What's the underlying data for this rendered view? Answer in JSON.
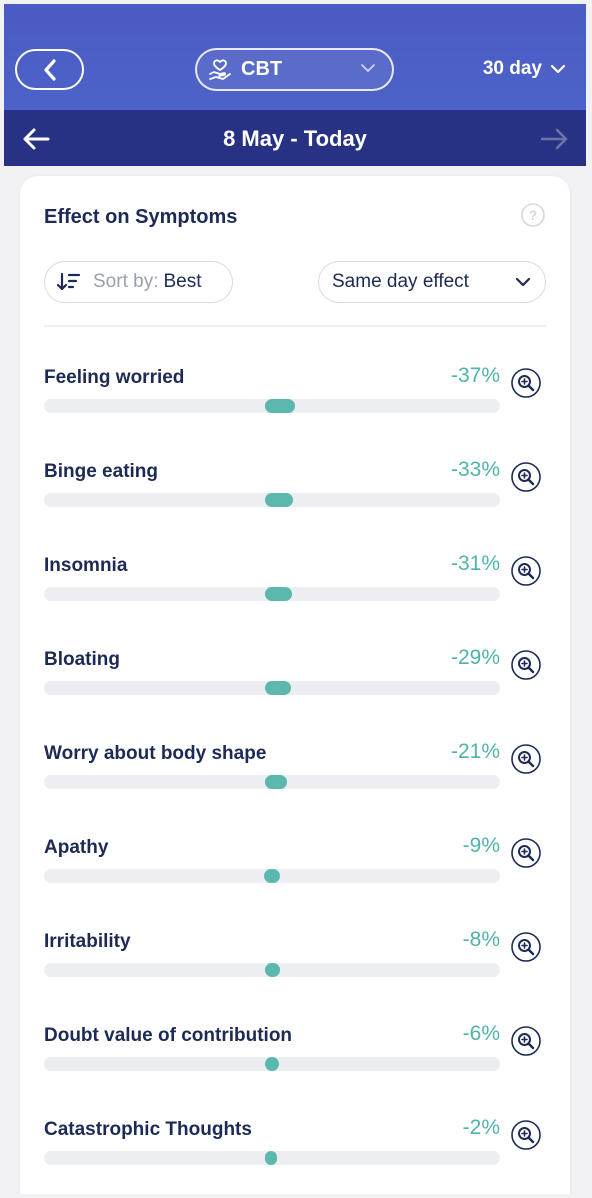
{
  "header": {
    "back_icon": "chevron-left-icon",
    "treatment": {
      "icon": "heart-hand-icon",
      "label": "CBT"
    },
    "range_label": "30 day",
    "date_range": "8 May - Today"
  },
  "card": {
    "title": "Effect on Symptoms",
    "sort": {
      "prefix": "Sort by:",
      "value": "Best"
    },
    "effect_select": "Same day effect",
    "symptoms": [
      {
        "name": "Feeling worried",
        "pct_label": "-37%",
        "effect": -37
      },
      {
        "name": "Binge eating",
        "pct_label": "-33%",
        "effect": -33
      },
      {
        "name": "Insomnia",
        "pct_label": "-31%",
        "effect": -31
      },
      {
        "name": "Bloating",
        "pct_label": "-29%",
        "effect": -29
      },
      {
        "name": "Worry about body shape",
        "pct_label": "-21%",
        "effect": -21
      },
      {
        "name": "Apathy",
        "pct_label": "-9%",
        "effect": -9
      },
      {
        "name": "Irritability",
        "pct_label": "-8%",
        "effect": -8
      },
      {
        "name": "Doubt value of contribution",
        "pct_label": "-6%",
        "effect": -6
      },
      {
        "name": "Catastrophic Thoughts",
        "pct_label": "-2%",
        "effect": -2
      }
    ]
  },
  "colors": {
    "header_gradient": "#4a5bc4",
    "date_bar": "#283284",
    "accent_teal": "#5bb8ad",
    "text_dark": "#1c2a55"
  }
}
